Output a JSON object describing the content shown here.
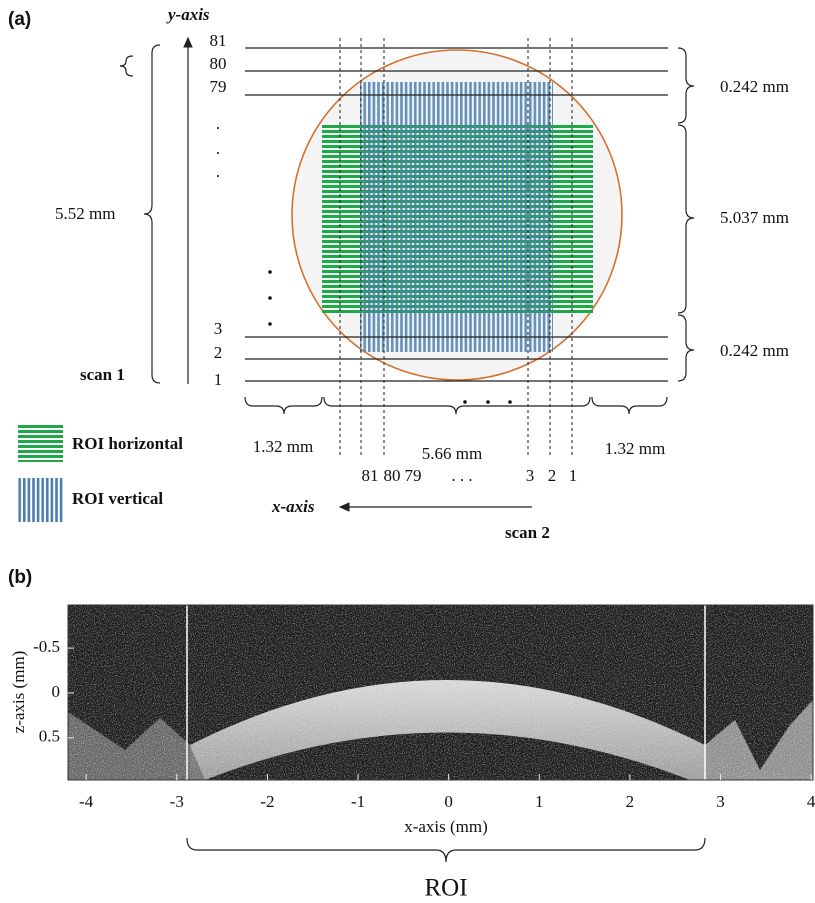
{
  "panel_a": {
    "label": "(a)",
    "y_axis": "y-axis",
    "row_labels": [
      "81",
      "80",
      "79",
      ".",
      ".",
      ".",
      "3",
      "2",
      "1"
    ],
    "scan1": "scan 1",
    "height": "5.52 mm",
    "right_dims": [
      "0.242 mm",
      "5.037 mm",
      "0.242 mm"
    ],
    "legend": [
      "ROI horizontal",
      "ROI vertical"
    ],
    "bottom_dims": [
      "1.32 mm",
      "5.66 mm",
      "1.32 mm"
    ],
    "col_labels": [
      "81",
      "80",
      "79",
      ". . .",
      "3",
      "2",
      "1"
    ],
    "x_axis": "x-axis",
    "scan2": "scan 2"
  },
  "chart_data": {
    "type": "image",
    "panel_label": "(b)",
    "x_label": "x-axis (mm)",
    "y_label": "z-axis (mm)",
    "xlim": [
      -4.2,
      4.02
    ],
    "xticks": [
      -4,
      -3,
      -2,
      -1,
      0,
      1,
      2,
      3,
      4
    ],
    "ylim": [
      -0.98,
      0.97
    ],
    "yticks": [
      -0.5,
      0,
      0.5
    ],
    "roi_label": "ROI"
  }
}
